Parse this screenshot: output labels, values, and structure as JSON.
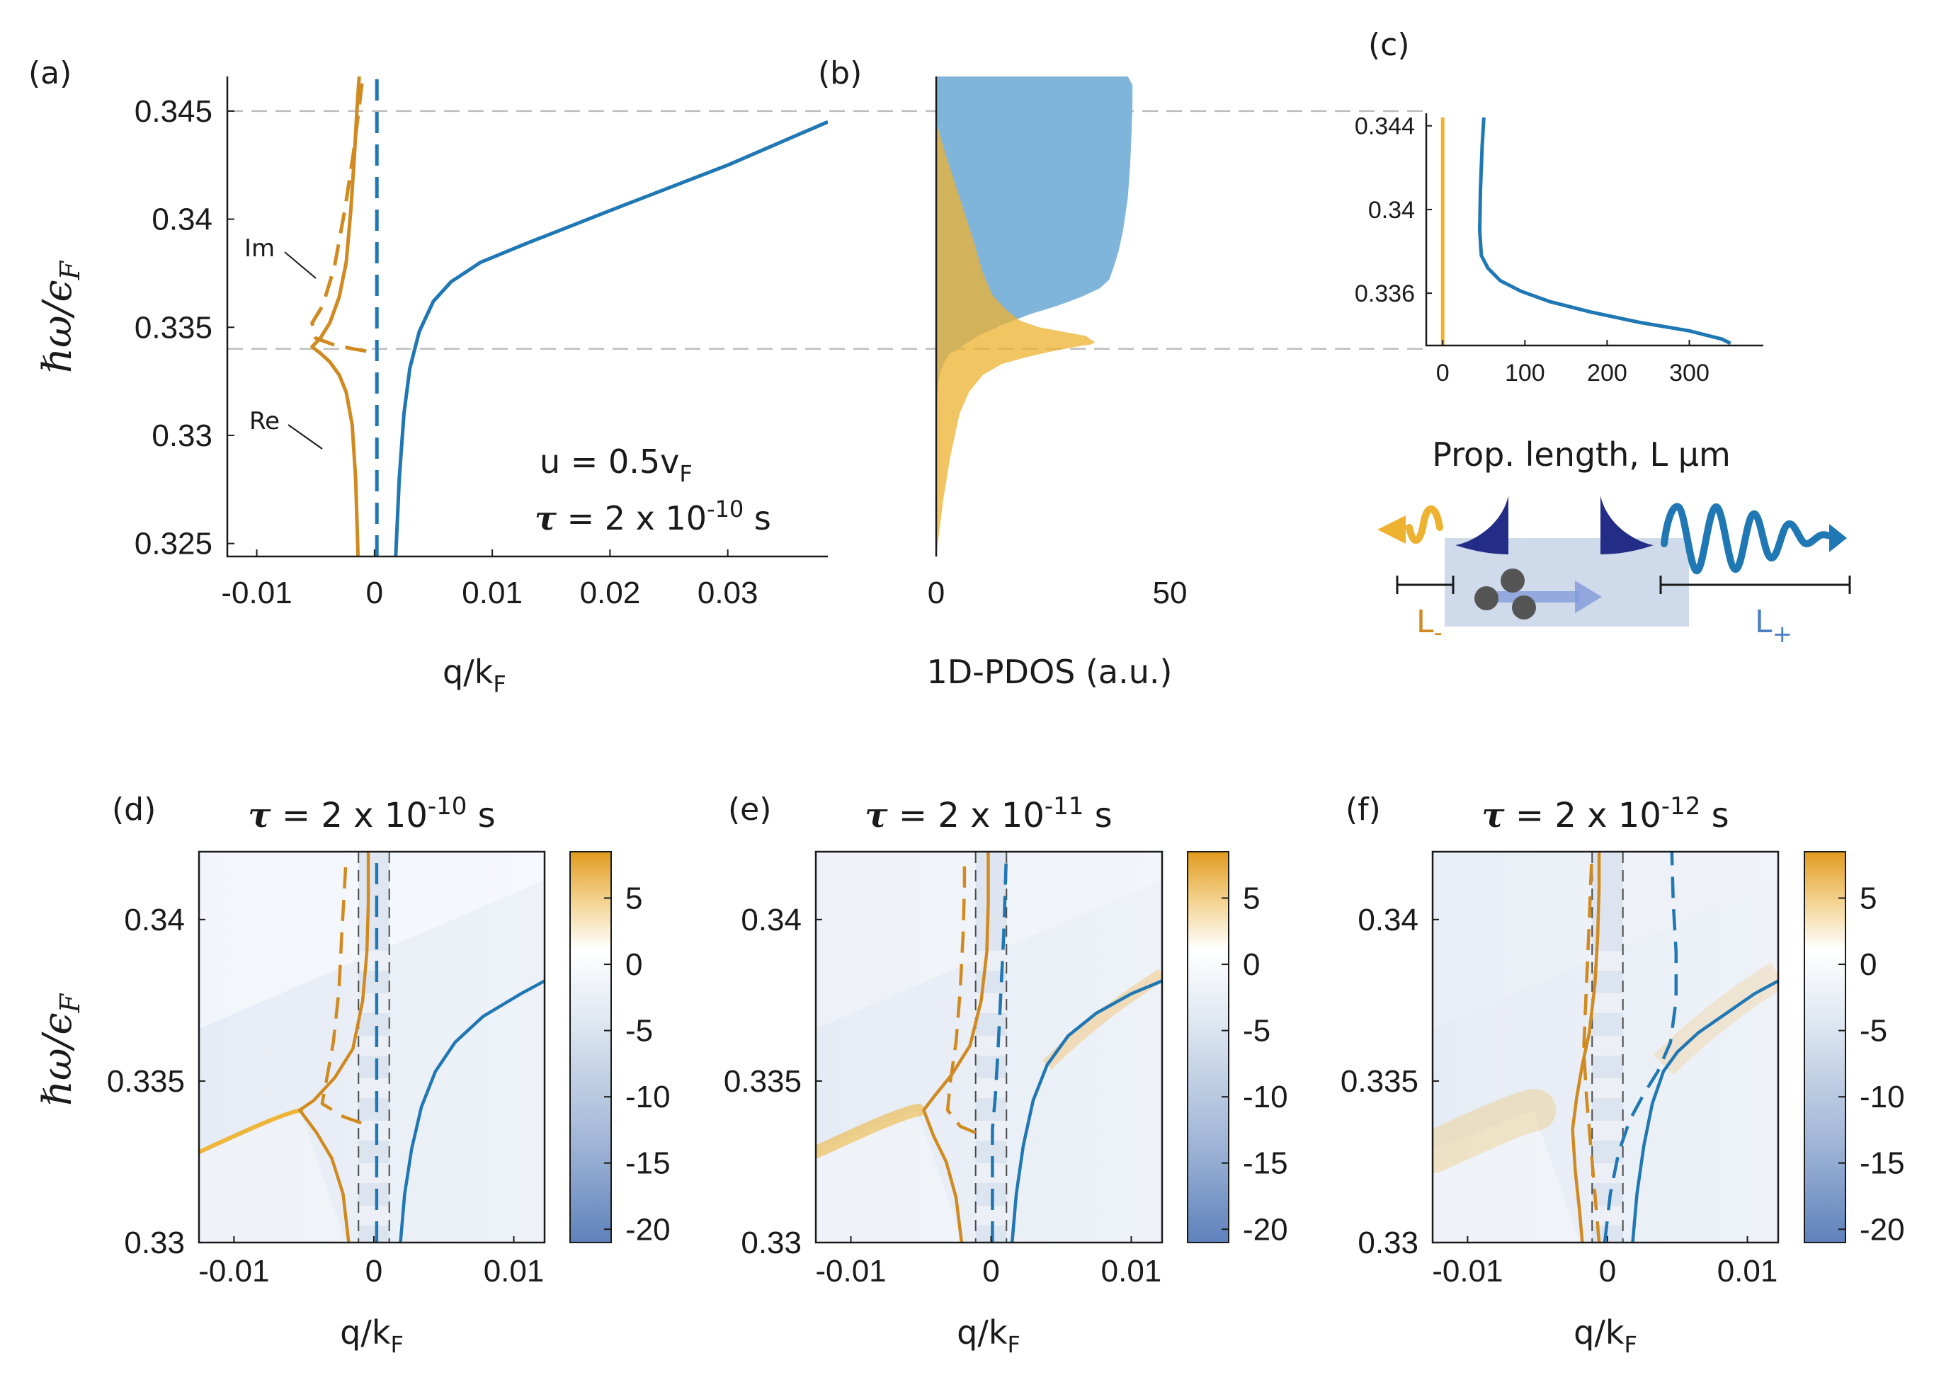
{
  "figure": {
    "panel_labels": [
      "(a)",
      "(b)",
      "(c)",
      "(d)",
      "(e)",
      "(f)"
    ],
    "colors": {
      "re_orange": "#D08A20",
      "blue": "#1F77B4",
      "pdos_blue": "#7FB5DA",
      "pdos_orange": "#EDB22F",
      "pdos_overlap": "#6E8A5C",
      "gray_dash": "#BDBDBD",
      "dark_blue": "#232C86",
      "light_blue_box": "#C3D2E6"
    }
  },
  "chart_data": [
    {
      "id": "a",
      "type": "line",
      "xlabel": "q/k",
      "xlabel_sub": "F",
      "ylabel": "ℏω/ϵ",
      "ylabel_sub": "F",
      "xlim": [
        -0.0125,
        0.0385
      ],
      "ylim": [
        0.3244,
        0.3466
      ],
      "xticks": [
        -0.01,
        0,
        0.01,
        0.02,
        0.03
      ],
      "xtick_labels": [
        "-0.01",
        "0",
        "0.01",
        "0.02",
        "0.03"
      ],
      "yticks": [
        0.325,
        0.33,
        0.335,
        0.34,
        0.345
      ],
      "ytick_labels": [
        "0.325",
        "0.33",
        "0.335",
        "0.34",
        "0.345"
      ],
      "annotations": {
        "im": "Im",
        "re": "Re",
        "u_text": "u = 0.5v",
        "u_sub": "F",
        "tau_sym": "τ",
        "tau_text": " = 2 x 10",
        "tau_exp": "-10",
        "tau_unit": " s"
      },
      "series": [
        {
          "name": "Re q−",
          "color": "#D08A20",
          "style": "solid",
          "x": [
            -0.0014,
            -0.0016,
            -0.0019,
            -0.0024,
            -0.003,
            -0.0038,
            -0.0046,
            -0.0053,
            -0.0046,
            -0.0038,
            -0.003,
            -0.0024,
            -0.002,
            -0.0017,
            -0.0015,
            -0.0013
          ],
          "y": [
            0.3244,
            0.328,
            0.3305,
            0.332,
            0.3328,
            0.3334,
            0.3338,
            0.3341,
            0.3345,
            0.3352,
            0.3364,
            0.338,
            0.3405,
            0.343,
            0.345,
            0.3466
          ]
        },
        {
          "name": "Im q−",
          "color": "#D08A20",
          "style": "dashed",
          "x": [
            -0.0007,
            -0.0018,
            -0.0035,
            -0.005,
            -0.0053,
            -0.0044,
            -0.0034,
            -0.0025,
            -0.0018,
            -0.0013,
            -0.001
          ],
          "y": [
            0.3339,
            0.334,
            0.3342,
            0.3345,
            0.3352,
            0.336,
            0.3378,
            0.3405,
            0.343,
            0.3452,
            0.3466
          ]
        },
        {
          "name": "Im q+",
          "color": "#1F77B4",
          "style": "dashed",
          "x": [
            0.0002,
            0.0002,
            0.0002
          ],
          "y": [
            0.3244,
            0.3355,
            0.3466
          ]
        },
        {
          "name": "Re q+",
          "color": "#1F77B4",
          "style": "solid",
          "x": [
            0.0018,
            0.0021,
            0.0025,
            0.003,
            0.0038,
            0.005,
            0.0065,
            0.009,
            0.013,
            0.02,
            0.03,
            0.0385
          ],
          "y": [
            0.3244,
            0.328,
            0.331,
            0.3331,
            0.3348,
            0.3362,
            0.3371,
            0.338,
            0.3389,
            0.3404,
            0.3425,
            0.3445
          ]
        }
      ],
      "hlines": [
        0.345,
        0.334
      ]
    },
    {
      "id": "b",
      "type": "area",
      "xlabel": "1D-PDOS (a.u.)",
      "xlim": [
        0,
        50
      ],
      "ylim": [
        0.3244,
        0.3466
      ],
      "xticks": [
        0,
        50
      ],
      "xtick_labels": [
        "0",
        "50"
      ],
      "series": [
        {
          "name": "PDOS q+",
          "color": "#7FB5DA",
          "x": [
            0,
            0,
            0.5,
            1,
            2,
            3,
            5,
            6,
            9,
            14,
            20,
            26,
            31,
            35,
            37,
            38,
            39,
            40,
            41,
            41.5,
            41.8,
            42,
            42,
            41,
            40
          ],
          "y": [
            0.3244,
            0.331,
            0.3325,
            0.333,
            0.3335,
            0.3338,
            0.334,
            0.3342,
            0.3346,
            0.3351,
            0.3356,
            0.336,
            0.3364,
            0.3368,
            0.3372,
            0.3378,
            0.3385,
            0.3395,
            0.341,
            0.3425,
            0.344,
            0.3455,
            0.3462,
            0.3466,
            0.3466
          ]
        },
        {
          "name": "PDOS q−",
          "color": "#EDB22F",
          "x": [
            0,
            1.5,
            3,
            5,
            7,
            10,
            14,
            19,
            25,
            30,
            33,
            34,
            32,
            27,
            22,
            18,
            15,
            12,
            10,
            8,
            5,
            2,
            0
          ],
          "y": [
            0.3244,
            0.327,
            0.329,
            0.331,
            0.332,
            0.3328,
            0.3333,
            0.3336,
            0.3339,
            0.3341,
            0.3342,
            0.3343,
            0.3346,
            0.3348,
            0.335,
            0.3353,
            0.3358,
            0.3365,
            0.3375,
            0.339,
            0.341,
            0.343,
            0.3445
          ]
        }
      ]
    },
    {
      "id": "c",
      "type": "line",
      "xlabel": "Prop. length, L μm",
      "xlim": [
        -20,
        390
      ],
      "ylim": [
        0.3335,
        0.3446
      ],
      "xticks": [
        0,
        100,
        200,
        300
      ],
      "xtick_labels": [
        "0",
        "100",
        "200",
        "300"
      ],
      "yticks": [
        0.336,
        0.34,
        0.344
      ],
      "ytick_labels": [
        "0.336",
        "0.34",
        "0.344"
      ],
      "inset_labels": {
        "l_minus": "L",
        "l_minus_sub": "-",
        "l_plus": "L",
        "l_plus_sub": "+"
      },
      "series": [
        {
          "name": "L−",
          "color": "#EDB22F",
          "x": [
            0,
            0
          ],
          "y": [
            0.3335,
            0.3444
          ]
        },
        {
          "name": "L+",
          "color": "#1F77B4",
          "x": [
            50,
            48,
            46,
            45,
            47,
            55,
            70,
            95,
            130,
            180,
            240,
            300,
            340,
            350
          ],
          "y": [
            0.3444,
            0.343,
            0.341,
            0.339,
            0.3378,
            0.3372,
            0.3366,
            0.3361,
            0.3356,
            0.3351,
            0.3346,
            0.3342,
            0.3338,
            0.3336
          ]
        }
      ]
    },
    {
      "id": "d",
      "type": "heatmap",
      "title_sym": "τ",
      "title_text": " = 2 x 10",
      "title_exp": "-10",
      "title_unit": " s",
      "xlabel": "q/k",
      "xlabel_sub": "F",
      "ylabel": "ℏω/ϵ",
      "ylabel_sub": "F",
      "xlim": [
        -0.0125,
        0.0122
      ],
      "ylim": [
        0.33,
        0.3421
      ],
      "xticks": [
        -0.01,
        0,
        0.01
      ],
      "xtick_labels": [
        "-0.01",
        "0",
        "0.01"
      ],
      "yticks": [
        0.33,
        0.335,
        0.34
      ],
      "ytick_labels": [
        "0.33",
        "0.335",
        "0.34"
      ],
      "colorbar": {
        "ticks": [
          5,
          0,
          -5,
          -10,
          -15,
          -20
        ],
        "tick_labels": [
          "5",
          "0",
          "-5",
          "-10",
          "-15",
          "-20"
        ],
        "range": [
          -21,
          8.5
        ]
      },
      "vlines": [
        -0.0011,
        0.0011
      ],
      "series": [
        {
          "name": "Re q−",
          "color": "#D08A20",
          "style": "solid",
          "x": [
            -0.0018,
            -0.0022,
            -0.003,
            -0.0041,
            -0.0053,
            -0.0043,
            -0.0028,
            -0.0015,
            -0.0008,
            -0.0005,
            -0.0004,
            -0.0004
          ],
          "y": [
            0.33,
            0.3315,
            0.3326,
            0.3334,
            0.3341,
            0.3344,
            0.3351,
            0.336,
            0.3375,
            0.339,
            0.3405,
            0.3421
          ]
        },
        {
          "name": "Im q−",
          "color": "#D08A20",
          "style": "dashed",
          "x": [
            -0.0009,
            -0.0022,
            -0.0037,
            -0.0034,
            -0.0029,
            -0.0025,
            -0.0023,
            -0.0021,
            -0.002
          ],
          "y": [
            0.3337,
            0.3339,
            0.3343,
            0.335,
            0.3362,
            0.3378,
            0.3395,
            0.341,
            0.3418
          ]
        },
        {
          "name": "Im q+",
          "color": "#1F77B4",
          "style": "dashed",
          "x": [
            0.0002,
            0.0002
          ],
          "y": [
            0.33,
            0.3421
          ]
        },
        {
          "name": "Re q+",
          "color": "#1F77B4",
          "style": "solid",
          "x": [
            0.0019,
            0.0022,
            0.0027,
            0.0034,
            0.0044,
            0.0058,
            0.0078,
            0.0105,
            0.0122
          ],
          "y": [
            0.33,
            0.3315,
            0.3329,
            0.3342,
            0.3353,
            0.3362,
            0.337,
            0.3377,
            0.3381
          ]
        }
      ]
    },
    {
      "id": "e",
      "type": "heatmap",
      "title_sym": "τ",
      "title_text": " = 2 x 10",
      "title_exp": "-11",
      "title_unit": " s",
      "xlabel": "q/k",
      "xlabel_sub": "F",
      "xlim": [
        -0.0125,
        0.0122
      ],
      "ylim": [
        0.33,
        0.3421
      ],
      "xticks": [
        -0.01,
        0,
        0.01
      ],
      "xtick_labels": [
        "-0.01",
        "0",
        "0.01"
      ],
      "yticks": [
        0.33,
        0.335,
        0.34
      ],
      "ytick_labels": [
        "0.33",
        "0.335",
        "0.34"
      ],
      "colorbar": {
        "ticks": [
          5,
          0,
          -5,
          -10,
          -15,
          -20
        ],
        "tick_labels": [
          "5",
          "0",
          "-5",
          "-10",
          "-15",
          "-20"
        ],
        "range": [
          -21,
          8.5
        ]
      },
      "vlines": [
        -0.0011,
        0.0011
      ],
      "series": [
        {
          "name": "Re q−",
          "color": "#D08A20",
          "style": "solid",
          "x": [
            -0.0021,
            -0.0025,
            -0.0032,
            -0.0041,
            -0.0048,
            -0.0041,
            -0.0028,
            -0.0015,
            -0.0007,
            -0.0003,
            -0.0002,
            -0.0002
          ],
          "y": [
            0.33,
            0.3314,
            0.3325,
            0.3333,
            0.3341,
            0.3345,
            0.3352,
            0.3361,
            0.3375,
            0.339,
            0.3405,
            0.3421
          ]
        },
        {
          "name": "Im q−",
          "color": "#D08A20",
          "style": "dashed",
          "x": [
            -0.0011,
            -0.0022,
            -0.0031,
            -0.0029,
            -0.0025,
            -0.0022,
            -0.002,
            -0.0019,
            -0.0019
          ],
          "y": [
            0.3334,
            0.3336,
            0.3341,
            0.335,
            0.3362,
            0.3378,
            0.3395,
            0.341,
            0.3418
          ]
        },
        {
          "name": "Im q+",
          "color": "#1F77B4",
          "style": "dashed",
          "x": [
            0.0001,
            0.0001,
            0.0003,
            0.0005,
            0.0009,
            0.0011
          ],
          "y": [
            0.33,
            0.3335,
            0.3345,
            0.336,
            0.3395,
            0.3421
          ]
        },
        {
          "name": "Re q+",
          "color": "#1F77B4",
          "style": "solid",
          "x": [
            0.0015,
            0.0018,
            0.0023,
            0.003,
            0.004,
            0.0055,
            0.0075,
            0.01,
            0.0122
          ],
          "y": [
            0.33,
            0.3315,
            0.333,
            0.3344,
            0.3355,
            0.3364,
            0.3371,
            0.3377,
            0.3381
          ]
        }
      ]
    },
    {
      "id": "f",
      "type": "heatmap",
      "title_sym": "τ",
      "title_text": " = 2 x 10",
      "title_exp": "-12",
      "title_unit": " s",
      "xlabel": "q/k",
      "xlabel_sub": "F",
      "xlim": [
        -0.0125,
        0.0122
      ],
      "ylim": [
        0.33,
        0.3421
      ],
      "xticks": [
        -0.01,
        0,
        0.01
      ],
      "xtick_labels": [
        "-0.01",
        "0",
        "0.01"
      ],
      "yticks": [
        0.33,
        0.335,
        0.34
      ],
      "ytick_labels": [
        "0.33",
        "0.335",
        "0.34"
      ],
      "colorbar": {
        "ticks": [
          5,
          0,
          -5,
          -10,
          -15,
          -20
        ],
        "tick_labels": [
          "5",
          "0",
          "-5",
          "-10",
          "-15",
          "-20"
        ],
        "range": [
          -21,
          8.5
        ]
      },
      "vlines": [
        -0.0011,
        0.0011
      ],
      "series": [
        {
          "name": "Re q−",
          "color": "#D08A20",
          "style": "solid",
          "x": [
            -0.0018,
            -0.002,
            -0.0023,
            -0.0025,
            -0.0022,
            -0.0018,
            -0.0013,
            -0.0009,
            -0.0007,
            -0.0006,
            -0.0006
          ],
          "y": [
            0.33,
            0.331,
            0.3322,
            0.3335,
            0.3345,
            0.3355,
            0.3365,
            0.338,
            0.3395,
            0.341,
            0.3421
          ]
        },
        {
          "name": "Im q−",
          "color": "#D08A20",
          "style": "dashed",
          "x": [
            -0.0006,
            -0.0009,
            -0.0012,
            -0.0015,
            -0.0017,
            -0.0015,
            -0.0013,
            -0.0012,
            -0.0011
          ],
          "y": [
            0.33,
            0.3315,
            0.333,
            0.3345,
            0.336,
            0.338,
            0.34,
            0.3412,
            0.3421
          ]
        },
        {
          "name": "Im q+",
          "color": "#1F77B4",
          "style": "dashed",
          "x": [
            -0.0002,
            0.0002,
            0.0008,
            0.0016,
            0.0026,
            0.0036,
            0.0045,
            0.0049,
            0.0049,
            0.0047,
            0.0046
          ],
          "y": [
            0.33,
            0.3315,
            0.3328,
            0.3338,
            0.3346,
            0.3353,
            0.3362,
            0.3375,
            0.339,
            0.3405,
            0.3421
          ]
        },
        {
          "name": "Re q+",
          "color": "#1F77B4",
          "style": "solid",
          "x": [
            0.0018,
            0.0021,
            0.0026,
            0.0032,
            0.004,
            0.005,
            0.0065,
            0.0085,
            0.0105,
            0.0122
          ],
          "y": [
            0.33,
            0.3315,
            0.333,
            0.3343,
            0.3353,
            0.3359,
            0.3365,
            0.3371,
            0.3377,
            0.3381
          ]
        }
      ]
    }
  ]
}
